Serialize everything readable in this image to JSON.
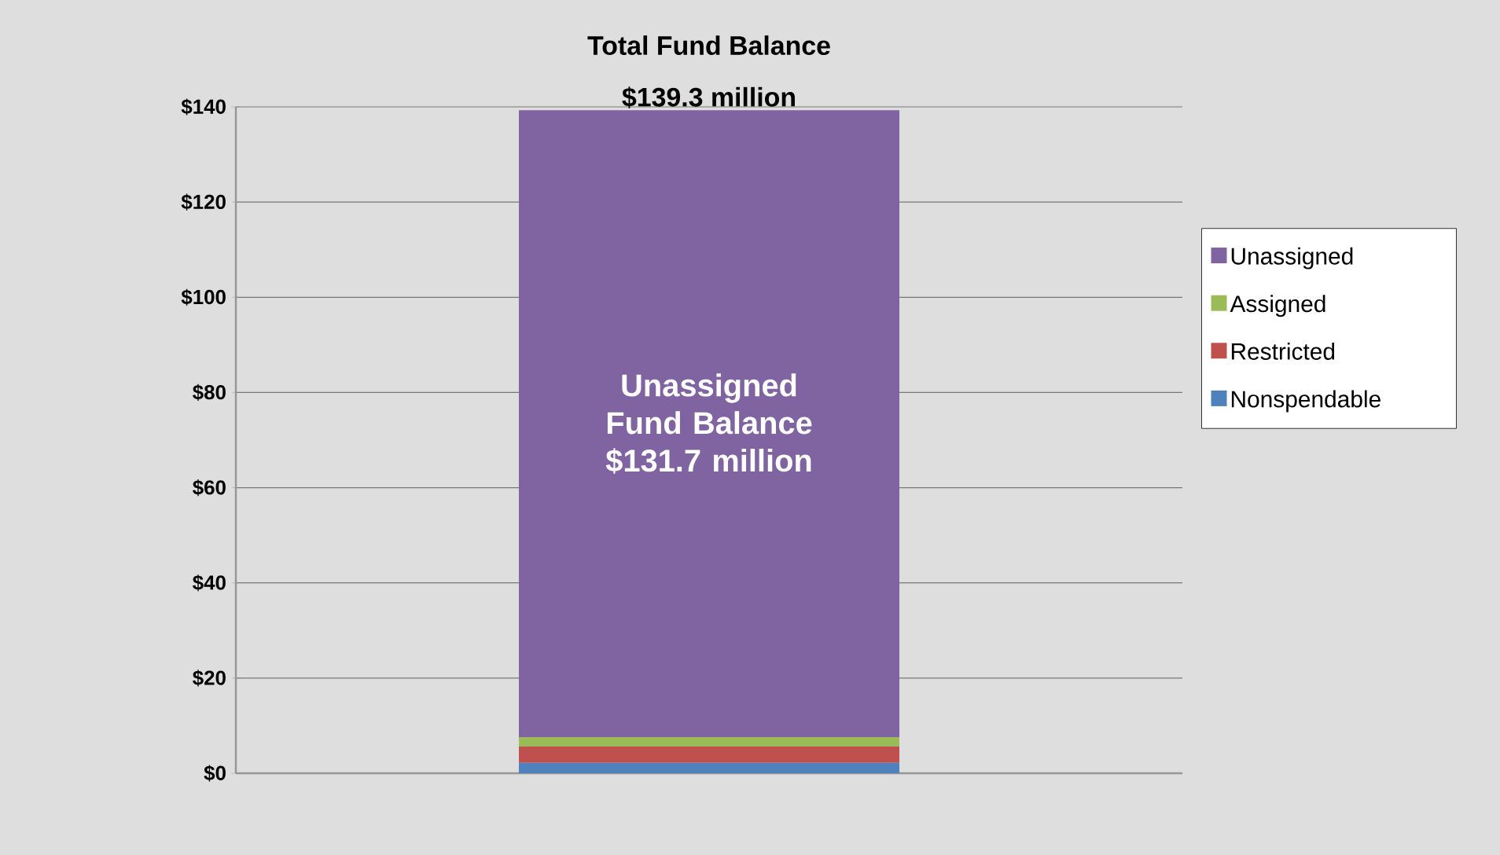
{
  "chart_data": {
    "type": "bar",
    "stacked": true,
    "title": "Total Fund Balance",
    "totals": [
      "$139.3 million"
    ],
    "categories": [
      null
    ],
    "series": [
      {
        "name": "Nonspendable",
        "color": "#4f81bd",
        "values": [
          2.2
        ]
      },
      {
        "name": "Restricted",
        "color": "#c0504d",
        "values": [
          3.4
        ]
      },
      {
        "name": "Assigned",
        "color": "#9bbb59",
        "values": [
          2.0
        ]
      },
      {
        "name": "Unassigned",
        "color": "#8064a2",
        "values": [
          131.7
        ],
        "value_labels": [
          "Unassigned Fund Balance $131.7 million"
        ]
      }
    ],
    "ylim": [
      0,
      140
    ],
    "yticks": [
      {
        "value": 0,
        "label": "$0"
      },
      {
        "value": 20,
        "label": "$20"
      },
      {
        "value": 40,
        "label": "$40"
      },
      {
        "value": 60,
        "label": "$60"
      },
      {
        "value": 80,
        "label": "$80"
      },
      {
        "value": 100,
        "label": "$100"
      },
      {
        "value": 120,
        "label": "$120"
      },
      {
        "value": 140,
        "label": "$140"
      }
    ],
    "grid": "y",
    "legend": "right"
  }
}
